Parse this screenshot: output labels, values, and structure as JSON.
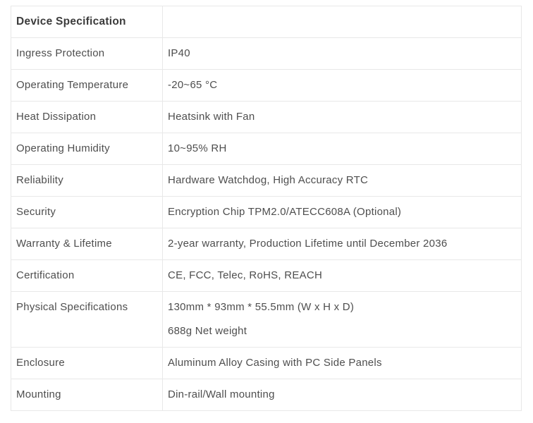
{
  "colors": {
    "border": "#e8e8e8",
    "header_text": "#3b3b3b",
    "body_text": "#4e4e4e",
    "background": "#ffffff"
  },
  "table": {
    "header": {
      "label": "Device Specification",
      "value": ""
    },
    "rows": [
      {
        "label": "Ingress Protection",
        "values": [
          "IP40"
        ]
      },
      {
        "label": "Operating Temperature",
        "values": [
          "-20~65 °C"
        ]
      },
      {
        "label": "Heat Dissipation",
        "values": [
          "Heatsink with Fan"
        ]
      },
      {
        "label": "Operating Humidity",
        "values": [
          "10~95% RH"
        ]
      },
      {
        "label": "Reliability",
        "values": [
          "Hardware Watchdog, High Accuracy RTC"
        ]
      },
      {
        "label": "Security",
        "values": [
          "Encryption Chip TPM2.0/ATECC608A (Optional)"
        ]
      },
      {
        "label": "Warranty & Lifetime",
        "values": [
          "2-year warranty, Production Lifetime until December 2036"
        ]
      },
      {
        "label": "Certification",
        "values": [
          "CE, FCC, Telec, RoHS, REACH"
        ]
      },
      {
        "label": "Physical Specifications",
        "values": [
          "130mm * 93mm * 55.5mm (W x H x D)",
          "688g Net weight"
        ]
      },
      {
        "label": "Enclosure",
        "values": [
          "Aluminum Alloy Casing with PC Side Panels"
        ]
      },
      {
        "label": "Mounting",
        "values": [
          "Din-rail/Wall mounting"
        ]
      }
    ]
  }
}
